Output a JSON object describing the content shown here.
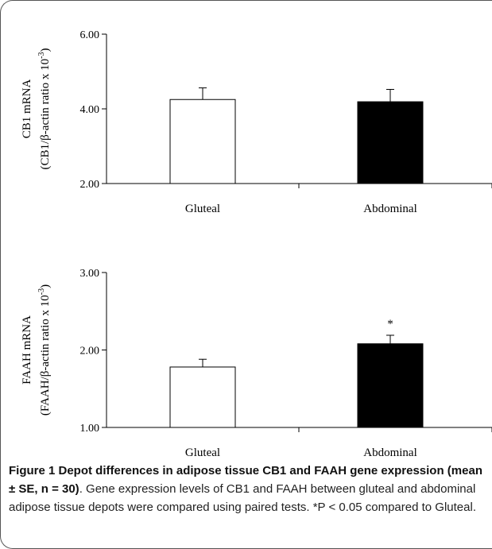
{
  "chart_data": [
    {
      "type": "bar",
      "categories": [
        "Gluteal",
        "Abdominal"
      ],
      "values": [
        4.25,
        4.19
      ],
      "errors": [
        0.31,
        0.33
      ],
      "colors": [
        "#ffffff",
        "#000000"
      ],
      "ylabel_line1": "CB1 mRNA",
      "ylabel_line2": "(CB1/β-actin ratio x 10",
      "ylabel_sup": "-3",
      "ylabel_close": ")",
      "ylim": [
        2.0,
        6.0
      ],
      "yticks": [
        "6.00",
        "4.00",
        "2.00"
      ],
      "annotations": [
        "",
        ""
      ]
    },
    {
      "type": "bar",
      "categories": [
        "Gluteal",
        "Abdominal"
      ],
      "values": [
        1.78,
        2.08
      ],
      "errors": [
        0.1,
        0.11
      ],
      "colors": [
        "#ffffff",
        "#000000"
      ],
      "ylabel_line1": "FAAH mRNA",
      "ylabel_line2": "(FAAH/β-actin ratio x 10",
      "ylabel_sup": "-3",
      "ylabel_close": ")",
      "ylim": [
        1.0,
        3.0
      ],
      "yticks": [
        "3.00",
        "2.00",
        "1.00"
      ],
      "annotations": [
        "",
        "*"
      ]
    }
  ],
  "caption": {
    "title": "Figure 1 Depot differences in adipose tissue CB1 and FAAH gene expression (mean ± SE, n = 30)",
    "text": ". Gene expression levels of CB1 and FAAH between gluteal and abdominal adipose tissue depots were compared using paired tests. *P < 0.05 compared to Gluteal."
  }
}
